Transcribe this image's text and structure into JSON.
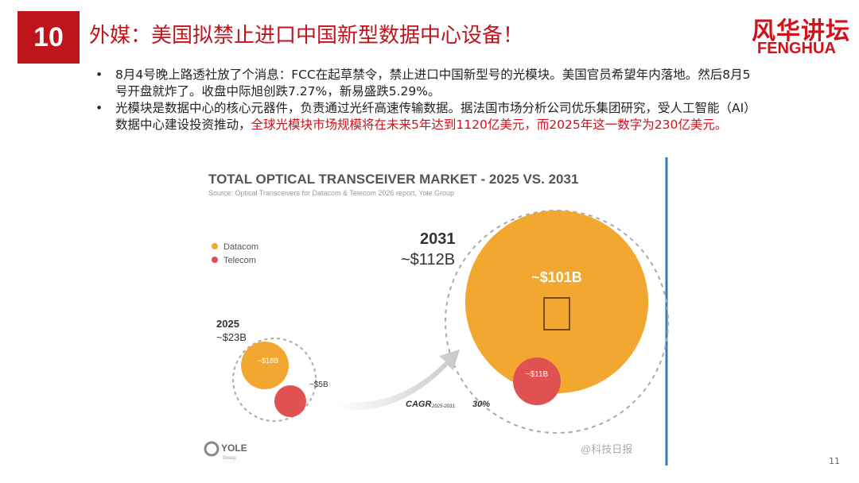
{
  "slide_number": "10",
  "title": "外媒：美国拟禁止进口中国新型数据中心设备！",
  "logo": {
    "cn": "风华讲坛",
    "en": "FENGHUA"
  },
  "bullets": [
    {
      "text": "8月4号晚上路透社放了个消息：FCC在起草禁令，禁止进口中国新型号的光模块。美国官员希望年内落地。然后8月5号开盘就炸了。收盘中际旭创跌7.27%，新易盛跌5.29%。"
    },
    {
      "text": "光模块是数据中心的核心元器件，负责通过光纤高速传输数据。据法国市场分析公司优乐集团研究，受人工智能（AI）数据中心建设投资推动，",
      "highlight": "全球光模块市场规模将在未来5年达到1120亿美元，而2025年这一数字为230亿美元。"
    }
  ],
  "figure": {
    "title": "TOTAL OPTICAL TRANSCEIVER MARKET - 2025 VS. 2031",
    "source": "Source: Optical Transceivers for Datacom & Telecom 2026 report, Yole Group",
    "legend": [
      "Datacom",
      "Telecom"
    ],
    "year_2031": "2031",
    "total_2031": "~$112B",
    "datacom_2031": "~$101B",
    "telecom_2031": "~$11B",
    "year_2025": "2025",
    "total_2025": "~$23B",
    "datacom_2025": "~$18B",
    "telecom_2025": "~$5B",
    "cagr_label": "CAGR",
    "cagr_period": "2025-2031:",
    "cagr_value": "30%",
    "brand": "YOLE",
    "brand_sub": "Group",
    "watermark": "@科技日报"
  },
  "page_number": "11"
}
